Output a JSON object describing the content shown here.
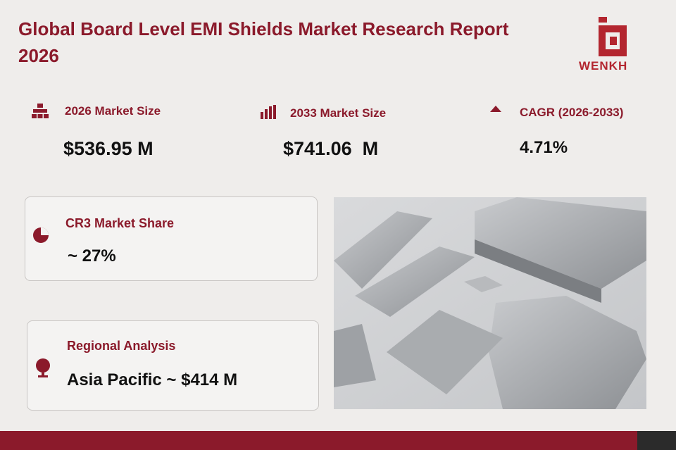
{
  "header": {
    "title": "Global Board Level EMI Shields Market Research Report 2026",
    "logo": "WENKH"
  },
  "stats": [
    {
      "label": "2026 Market Size",
      "value": "$536.95 M"
    },
    {
      "label": "2033 Market Size",
      "value": "$741.06  M"
    },
    {
      "label": "CAGR (2026-2033)",
      "value": "4.71%"
    }
  ],
  "cards": [
    {
      "label": "CR3 Market Share",
      "value": "~ 27%"
    },
    {
      "label": "Regional Analysis",
      "value": "Asia Pacific ~ $414 M"
    }
  ]
}
